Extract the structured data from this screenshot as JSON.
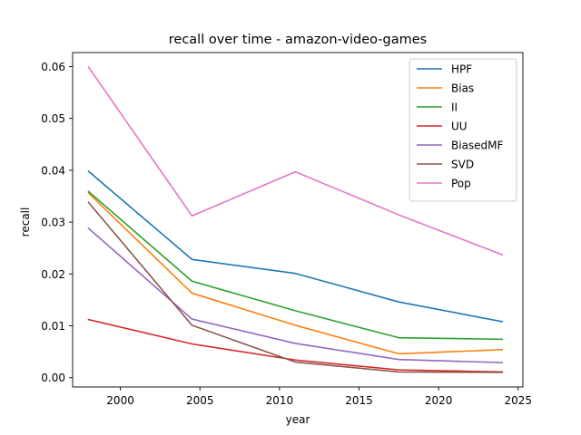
{
  "chart_data": {
    "type": "line",
    "title": "recall over time - amazon-video-games",
    "xlabel": "year",
    "ylabel": "recall",
    "x": [
      1998,
      2004.5,
      2011,
      2017.5,
      2024
    ],
    "xlim": [
      1997,
      2025.3
    ],
    "ylim": [
      -0.0018,
      0.0627
    ],
    "xticks": [
      2000,
      2005,
      2010,
      2015,
      2020,
      2025
    ],
    "yticks": [
      0.0,
      0.01,
      0.02,
      0.03,
      0.04,
      0.05,
      0.06
    ],
    "ytick_labels": [
      "0.00",
      "0.01",
      "0.02",
      "0.03",
      "0.04",
      "0.05",
      "0.06"
    ],
    "grid": false,
    "legend_position": "top-right",
    "series": [
      {
        "name": "HPF",
        "color": "#1f77b4",
        "values": [
          0.0398,
          0.0228,
          0.0201,
          0.0146,
          0.0108
        ]
      },
      {
        "name": "Bias",
        "color": "#ff7f0e",
        "values": [
          0.0356,
          0.0163,
          0.0101,
          0.0046,
          0.0054
        ]
      },
      {
        "name": "II",
        "color": "#2ca02c",
        "values": [
          0.0359,
          0.0186,
          0.0129,
          0.0077,
          0.0074
        ]
      },
      {
        "name": "UU",
        "color": "#d62728",
        "values": [
          0.0112,
          0.0065,
          0.0034,
          0.0015,
          0.0011
        ]
      },
      {
        "name": "BiasedMF",
        "color": "#9467bd",
        "values": [
          0.0288,
          0.0113,
          0.0066,
          0.0035,
          0.0029
        ]
      },
      {
        "name": "SVD",
        "color": "#8c564b",
        "values": [
          0.0338,
          0.0101,
          0.003,
          0.0011,
          0.001
        ]
      },
      {
        "name": "Pop",
        "color": "#e377c2",
        "values": [
          0.0599,
          0.0312,
          0.0397,
          0.0314,
          0.0237
        ]
      }
    ]
  }
}
